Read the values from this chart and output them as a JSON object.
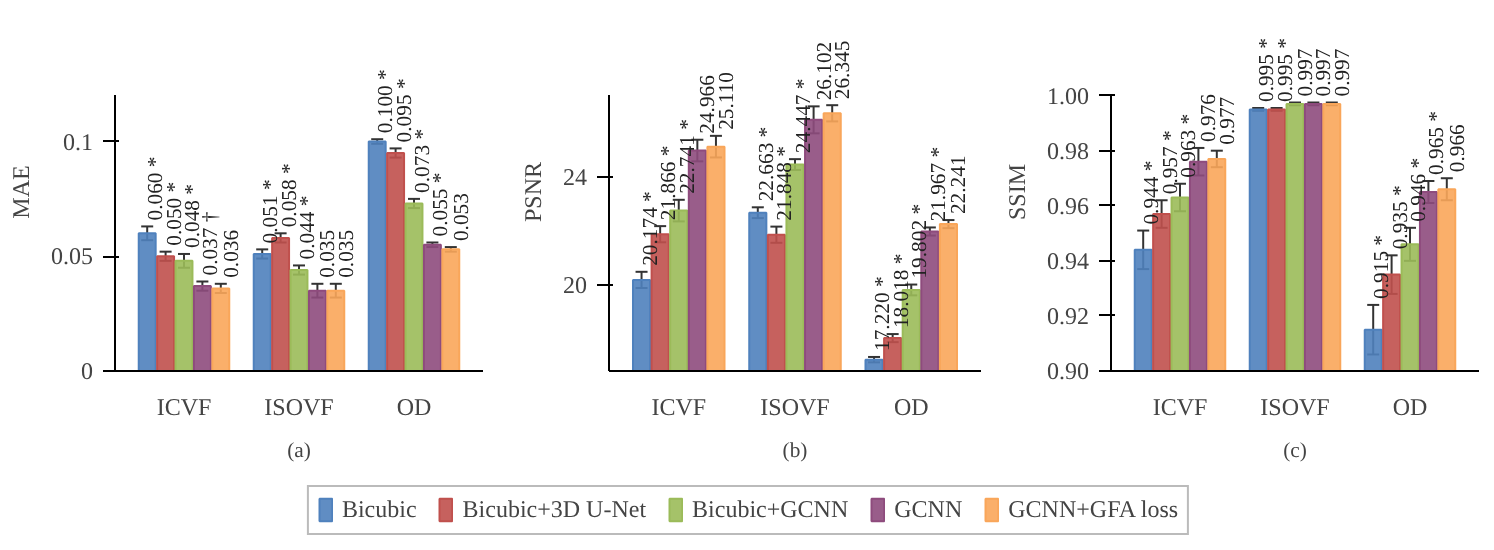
{
  "chart_data": [
    {
      "type": "bar",
      "categories": [
        "ICVF",
        "ISOVF",
        "OD"
      ],
      "ylabel": "MAE",
      "ylim": [
        0,
        0.12
      ],
      "yticks": [
        0,
        0.05,
        {
          "value": 0.1,
          "label": "0.1"
        }
      ],
      "grid": false,
      "legend": "bottom",
      "annotations": [
        "(a)"
      ],
      "series": [
        {
          "name": "Bicubic",
          "color": "#4f81bd",
          "values": [
            0.06,
            0.051,
            0.1
          ],
          "errors": [
            0.003,
            0.002,
            0.001
          ],
          "value_labels": [
            "0.060 *",
            "0.051 *",
            "0.100 *"
          ]
        },
        {
          "name": "Bicubic+3D U-Net",
          "color": "#c0504d",
          "values": [
            0.05,
            0.058,
            0.095
          ],
          "errors": [
            0.002,
            0.002,
            0.002
          ],
          "value_labels": [
            "0.050 *",
            "0.058 *",
            "0.095 *"
          ]
        },
        {
          "name": "Bicubic+GCNN",
          "color": "#9bbb59",
          "values": [
            0.048,
            0.044,
            0.073
          ],
          "errors": [
            0.003,
            0.002,
            0.002
          ],
          "value_labels": [
            "0.048 *",
            "0.044 *",
            "0.073 *"
          ]
        },
        {
          "name": "GCNN",
          "color": "#8e4b7d",
          "values": [
            0.037,
            0.035,
            0.055
          ],
          "errors": [
            0.002,
            0.003,
            0.001
          ],
          "value_labels": [
            "0.037 †",
            "0.035",
            "0.055 *"
          ]
        },
        {
          "name": "GCNN+GFA loss",
          "color": "#f9a65a",
          "values": [
            0.036,
            0.035,
            0.053
          ],
          "errors": [
            0.002,
            0.003,
            0.001
          ],
          "value_labels": [
            "0.036",
            "0.035",
            "0.053"
          ]
        }
      ]
    },
    {
      "type": "bar",
      "categories": [
        "ICVF",
        "ISOVF",
        "OD"
      ],
      "ylabel": "PSNR",
      "ylim": [
        16.8,
        27
      ],
      "yticks": [
        20,
        24
      ],
      "grid": false,
      "annotations": [
        "(b)"
      ],
      "series": [
        {
          "color": "#4f81bd",
          "values": [
            20.174,
            22.663,
            17.22
          ],
          "errors": [
            0.3,
            0.2,
            0.1
          ],
          "value_labels": [
            "20.174 *",
            "22.663 *",
            "17.220 *"
          ]
        },
        {
          "color": "#c0504d",
          "values": [
            21.866,
            21.848,
            18.018
          ],
          "errors": [
            0.3,
            0.3,
            0.15
          ],
          "value_labels": [
            "21.866 *",
            "21.848 *",
            "18.018 *"
          ]
        },
        {
          "color": "#9bbb59",
          "values": [
            22.741,
            24.447,
            19.802
          ],
          "errors": [
            0.4,
            0.2,
            0.2
          ],
          "value_labels": [
            "22.741 *",
            "24.447 *",
            "19.802 *"
          ]
        },
        {
          "color": "#8e4b7d",
          "values": [
            24.966,
            26.102,
            21.967
          ],
          "errors": [
            0.4,
            0.5,
            0.15
          ],
          "value_labels": [
            "24.966",
            "26.102",
            "21.967 *"
          ]
        },
        {
          "color": "#f9a65a",
          "values": [
            25.11,
            26.345,
            22.241
          ],
          "errors": [
            0.4,
            0.3,
            0.15
          ],
          "value_labels": [
            "25.110",
            "26.345",
            "22.241"
          ]
        }
      ]
    },
    {
      "type": "bar",
      "categories": [
        "ICVF",
        "ISOVF",
        "OD"
      ],
      "ylabel": "SSIM",
      "ylim": [
        0.9,
        1.0
      ],
      "yticks": [
        {
          "value": 0.9,
          "label": "0.90"
        },
        0.92,
        0.94,
        0.96,
        0.98,
        {
          "value": 1.0,
          "label": "1.00"
        }
      ],
      "grid": false,
      "annotations": [
        "(c)"
      ],
      "series": [
        {
          "color": "#4f81bd",
          "values": [
            0.944,
            0.995,
            0.915
          ],
          "errors": [
            0.007,
            0.0005,
            0.009
          ],
          "value_labels": [
            "0.944 *",
            "0.995 *",
            "0.915 *"
          ]
        },
        {
          "color": "#c0504d",
          "values": [
            0.957,
            0.995,
            0.935
          ],
          "errors": [
            0.005,
            0.0005,
            0.007
          ],
          "value_labels": [
            "0.957 *",
            "0.995 *",
            "0.935 *"
          ]
        },
        {
          "color": "#9bbb59",
          "values": [
            0.963,
            0.997,
            0.946
          ],
          "errors": [
            0.005,
            0.0005,
            0.006
          ],
          "value_labels": [
            "0.963 *",
            "0.997",
            "0.946 *"
          ]
        },
        {
          "color": "#8e4b7d",
          "values": [
            0.976,
            0.997,
            0.965
          ],
          "errors": [
            0.005,
            0.0005,
            0.004
          ],
          "value_labels": [
            "0.976",
            "0.997",
            "0.965 *"
          ]
        },
        {
          "color": "#f9a65a",
          "values": [
            0.977,
            0.997,
            0.966
          ],
          "errors": [
            0.003,
            0.0005,
            0.004
          ],
          "value_labels": [
            "0.977",
            "0.997",
            "0.966"
          ]
        }
      ]
    }
  ]
}
